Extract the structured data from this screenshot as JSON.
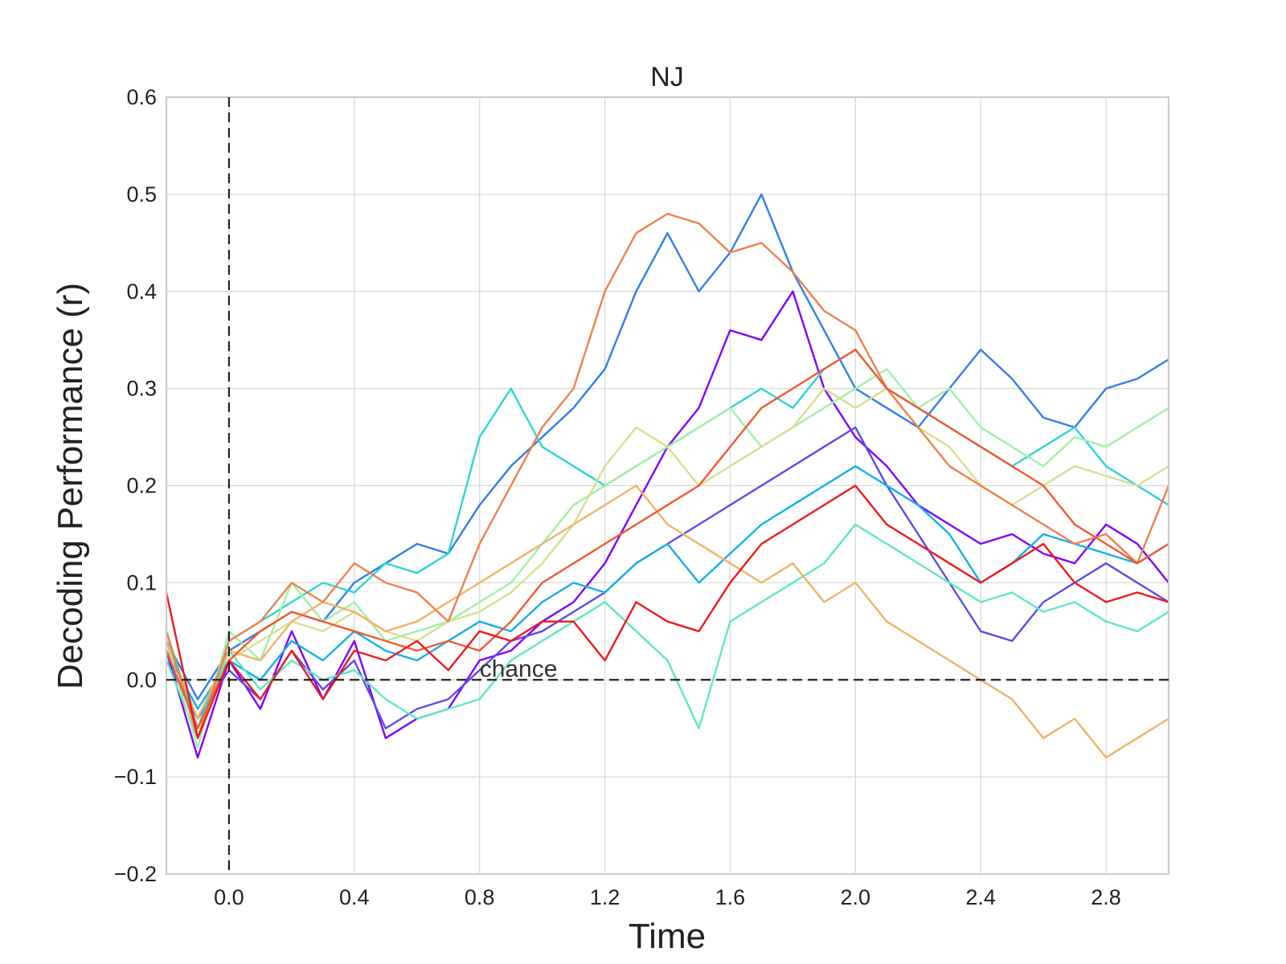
{
  "chart_data": {
    "type": "line",
    "title": "NJ",
    "xlabel": "Time",
    "ylabel": "Decoding Performance (r)",
    "xlim": [
      -0.2,
      3.0
    ],
    "ylim": [
      -0.2,
      0.6
    ],
    "xticks": [
      0.0,
      0.4,
      0.8,
      1.2,
      1.6,
      2.0,
      2.4,
      2.8
    ],
    "xtick_labels": [
      "0.0",
      "0.4",
      "0.8",
      "1.2",
      "1.6",
      "2.0",
      "2.4",
      "2.8"
    ],
    "yticks": [
      -0.2,
      -0.1,
      0.0,
      0.1,
      0.2,
      0.3,
      0.4,
      0.5,
      0.6
    ],
    "ytick_labels": [
      "−0.2",
      "−0.1",
      "0.0",
      "0.1",
      "0.2",
      "0.3",
      "0.4",
      "0.5",
      "0.6"
    ],
    "grid": true,
    "legend": "none",
    "annotations": [
      {
        "text": "chance",
        "x": 0.8,
        "y": 0.0
      }
    ],
    "reference_lines": [
      {
        "orientation": "vertical",
        "value": 0.0,
        "style": "dashed",
        "color": "#222222"
      },
      {
        "orientation": "horizontal",
        "value": 0.0,
        "style": "dashed",
        "color": "#222222"
      }
    ],
    "x": [
      -0.2,
      -0.1,
      0.0,
      0.1,
      0.2,
      0.3,
      0.4,
      0.5,
      0.6,
      0.7,
      0.8,
      0.9,
      1.0,
      1.1,
      1.2,
      1.3,
      1.4,
      1.5,
      1.6,
      1.7,
      1.8,
      1.9,
      2.0,
      2.1,
      2.2,
      2.3,
      2.4,
      2.5,
      2.6,
      2.7,
      2.8,
      2.9,
      3.0
    ],
    "series": [
      {
        "color": "#7f00ff",
        "values": [
          0.03,
          -0.08,
          0.02,
          -0.03,
          0.05,
          -0.02,
          0.04,
          -0.06,
          -0.04,
          -0.03,
          0.02,
          0.03,
          0.06,
          0.08,
          0.12,
          0.18,
          0.24,
          0.28,
          0.36,
          0.35,
          0.4,
          0.3,
          0.25,
          0.22,
          0.18,
          0.16,
          0.14,
          0.15,
          0.13,
          0.12,
          0.16,
          0.14,
          0.1
        ]
      },
      {
        "color": "#5a4ce8",
        "values": [
          0.02,
          -0.04,
          0.01,
          -0.02,
          0.03,
          -0.01,
          0.02,
          -0.05,
          -0.03,
          -0.02,
          0.01,
          0.04,
          0.05,
          0.07,
          0.09,
          0.12,
          0.14,
          0.16,
          0.18,
          0.2,
          0.22,
          0.24,
          0.26,
          0.2,
          0.15,
          0.1,
          0.05,
          0.04,
          0.08,
          0.1,
          0.12,
          0.1,
          0.08
        ]
      },
      {
        "color": "#2f7fe6",
        "values": [
          0.04,
          -0.02,
          0.03,
          0.05,
          0.07,
          0.06,
          0.1,
          0.12,
          0.14,
          0.13,
          0.18,
          0.22,
          0.25,
          0.28,
          0.32,
          0.4,
          0.46,
          0.4,
          0.44,
          0.5,
          0.42,
          0.36,
          0.3,
          0.28,
          0.26,
          0.3,
          0.34,
          0.31,
          0.27,
          0.26,
          0.3,
          0.31,
          0.33
        ]
      },
      {
        "color": "#14b0ea",
        "values": [
          0.03,
          -0.03,
          0.02,
          0.0,
          0.04,
          0.02,
          0.05,
          0.03,
          0.02,
          0.04,
          0.06,
          0.05,
          0.08,
          0.1,
          0.09,
          0.12,
          0.14,
          0.1,
          0.13,
          0.16,
          0.18,
          0.2,
          0.22,
          0.2,
          0.18,
          0.15,
          0.1,
          0.12,
          0.15,
          0.14,
          0.13,
          0.12,
          0.14
        ]
      },
      {
        "color": "#2fd5d5",
        "values": [
          0.05,
          -0.05,
          0.04,
          0.06,
          0.08,
          0.1,
          0.09,
          0.12,
          0.11,
          0.13,
          0.25,
          0.3,
          0.24,
          0.22,
          0.2,
          0.22,
          0.24,
          0.26,
          0.28,
          0.3,
          0.28,
          0.32,
          0.34,
          0.3,
          0.28,
          0.26,
          0.24,
          0.22,
          0.24,
          0.26,
          0.22,
          0.2,
          0.18
        ]
      },
      {
        "color": "#5fe8c0",
        "values": [
          0.02,
          -0.06,
          0.03,
          -0.01,
          0.02,
          0.0,
          0.01,
          -0.02,
          -0.04,
          -0.03,
          -0.02,
          0.02,
          0.04,
          0.06,
          0.08,
          0.05,
          0.02,
          -0.05,
          0.06,
          0.08,
          0.1,
          0.12,
          0.16,
          0.14,
          0.12,
          0.1,
          0.08,
          0.09,
          0.07,
          0.08,
          0.06,
          0.05,
          0.07
        ]
      },
      {
        "color": "#9ff0a8",
        "values": [
          0.04,
          -0.07,
          0.05,
          0.02,
          0.1,
          0.06,
          0.08,
          0.04,
          0.05,
          0.06,
          0.08,
          0.1,
          0.14,
          0.18,
          0.2,
          0.22,
          0.24,
          0.26,
          0.28,
          0.24,
          0.26,
          0.28,
          0.3,
          0.32,
          0.28,
          0.3,
          0.26,
          0.24,
          0.22,
          0.25,
          0.24,
          0.26,
          0.28
        ]
      },
      {
        "color": "#d7e08f",
        "values": [
          0.03,
          -0.05,
          0.02,
          0.04,
          0.06,
          0.05,
          0.07,
          0.05,
          0.04,
          0.06,
          0.07,
          0.09,
          0.12,
          0.16,
          0.22,
          0.26,
          0.24,
          0.2,
          0.22,
          0.24,
          0.26,
          0.3,
          0.28,
          0.3,
          0.26,
          0.24,
          0.2,
          0.18,
          0.2,
          0.22,
          0.21,
          0.2,
          0.22
        ]
      },
      {
        "color": "#f2b266",
        "values": [
          0.04,
          -0.04,
          0.03,
          0.02,
          0.06,
          0.08,
          0.07,
          0.05,
          0.06,
          0.08,
          0.1,
          0.12,
          0.14,
          0.16,
          0.18,
          0.2,
          0.16,
          0.14,
          0.12,
          0.1,
          0.12,
          0.08,
          0.1,
          0.06,
          0.04,
          0.02,
          0.0,
          -0.02,
          -0.06,
          -0.04,
          -0.08,
          -0.06,
          -0.04
        ]
      },
      {
        "color": "#f0804a",
        "values": [
          0.05,
          -0.06,
          0.04,
          0.06,
          0.1,
          0.08,
          0.12,
          0.1,
          0.09,
          0.06,
          0.14,
          0.2,
          0.26,
          0.3,
          0.4,
          0.46,
          0.48,
          0.47,
          0.44,
          0.45,
          0.42,
          0.38,
          0.36,
          0.3,
          0.26,
          0.22,
          0.2,
          0.18,
          0.16,
          0.14,
          0.15,
          0.12,
          0.2
        ]
      },
      {
        "color": "#f25a2f",
        "values": [
          0.03,
          -0.05,
          0.02,
          0.05,
          0.07,
          0.06,
          0.05,
          0.04,
          0.03,
          0.04,
          0.03,
          0.06,
          0.1,
          0.12,
          0.14,
          0.16,
          0.18,
          0.2,
          0.24,
          0.28,
          0.3,
          0.32,
          0.34,
          0.3,
          0.28,
          0.26,
          0.24,
          0.22,
          0.2,
          0.16,
          0.14,
          0.12,
          0.14
        ]
      },
      {
        "color": "#ee1a1a",
        "values": [
          0.09,
          -0.06,
          0.02,
          -0.02,
          0.03,
          -0.02,
          0.03,
          0.02,
          0.04,
          0.01,
          0.05,
          0.04,
          0.06,
          0.06,
          0.02,
          0.08,
          0.06,
          0.05,
          0.1,
          0.14,
          0.16,
          0.18,
          0.2,
          0.16,
          0.14,
          0.12,
          0.1,
          0.12,
          0.14,
          0.1,
          0.08,
          0.09,
          0.08
        ]
      }
    ]
  }
}
